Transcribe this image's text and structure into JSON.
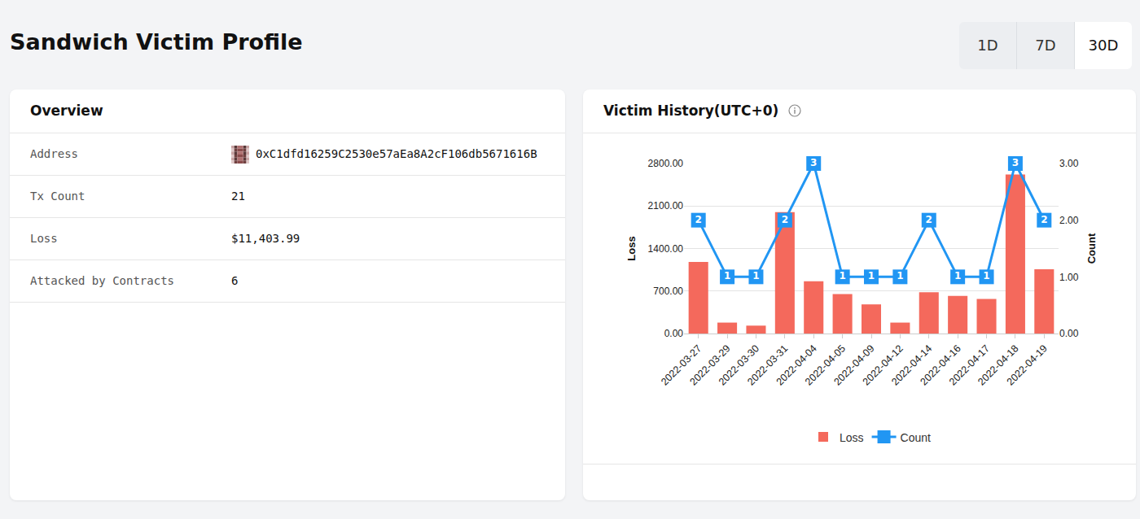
{
  "header": {
    "title": "Sandwich Victim Profile",
    "ranges": [
      "1D",
      "7D",
      "30D"
    ],
    "selected": "30D"
  },
  "overview": {
    "title": "Overview",
    "rows": [
      [
        "Address",
        "0xC1dfd16259C2530e57aEa8A2cF106db5671616B"
      ],
      [
        "Tx Count",
        "21"
      ],
      [
        "Loss",
        "$11,403.99"
      ],
      [
        "Attacked by Contracts",
        "6"
      ]
    ]
  },
  "chart_data": {
    "type": "bar",
    "title": "Victim History(UTC+0)",
    "categories": [
      "2022-03-27",
      "2022-03-29",
      "2022-03-30",
      "2022-03-31",
      "2022-04-04",
      "2022-04-05",
      "2022-04-09",
      "2022-04-12",
      "2022-04-14",
      "2022-04-16",
      "2022-04-17",
      "2022-04-18",
      "2022-04-19"
    ],
    "series": [
      {
        "name": "Loss",
        "type": "bar",
        "color": "#f4695c",
        "values": [
          1180,
          180,
          130,
          2000,
          860,
          650,
          480,
          180,
          680,
          620,
          570,
          2620,
          1060
        ]
      },
      {
        "name": "Count",
        "type": "line",
        "axis": "y2",
        "color": "#2196f3",
        "marker": "square",
        "data_labels": true,
        "values": [
          2,
          1,
          1,
          2,
          3,
          1,
          1,
          1,
          2,
          1,
          1,
          3,
          2
        ]
      }
    ],
    "ylabel": "Loss",
    "y2label": "Count",
    "ylim": [
      0,
      2800
    ],
    "yticks": [
      {
        "value": 0,
        "label": "0.00"
      },
      {
        "value": 700,
        "label": "700.00"
      },
      {
        "value": 1400,
        "label": "1400.00"
      },
      {
        "value": 2100,
        "label": "2100.00"
      },
      {
        "value": 2800,
        "label": "2800.00"
      }
    ],
    "y2lim": [
      0,
      3
    ],
    "y2ticks": [
      {
        "value": 0,
        "label": "0.00"
      },
      {
        "value": 1,
        "label": "1.00"
      },
      {
        "value": 2,
        "label": "2.00"
      },
      {
        "value": 3,
        "label": "3.00"
      }
    ],
    "grid": true,
    "legend": "bottom"
  }
}
